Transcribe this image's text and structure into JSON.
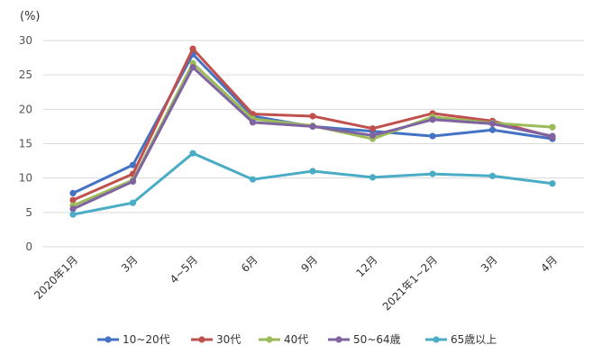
{
  "chart_data": {
    "type": "line",
    "unit_label": "(%)",
    "categories": [
      "2020年1月",
      "3月",
      "4~5月",
      "6月",
      "9月",
      "12月",
      "2021年1~2月",
      "3月",
      "4月"
    ],
    "ylim": [
      0,
      30
    ],
    "yticks": [
      0,
      5,
      10,
      15,
      20,
      25,
      30
    ],
    "grid": true,
    "legend_position": "bottom",
    "series": [
      {
        "name": "10~20代",
        "color": "#4472c4",
        "values": [
          7.8,
          11.9,
          28.0,
          19.0,
          17.5,
          16.8,
          16.1,
          17.0,
          15.7
        ]
      },
      {
        "name": "30代",
        "color": "#c0504d",
        "values": [
          6.8,
          10.6,
          28.8,
          19.3,
          19.0,
          17.2,
          19.4,
          18.3,
          16.0
        ]
      },
      {
        "name": "40代",
        "color": "#9bbb59",
        "values": [
          6.0,
          9.7,
          26.7,
          18.6,
          17.6,
          15.7,
          18.9,
          18.0,
          17.4
        ]
      },
      {
        "name": "50~64歳",
        "color": "#8064a2",
        "values": [
          5.5,
          9.5,
          26.1,
          18.1,
          17.5,
          16.2,
          18.5,
          17.9,
          16.1
        ]
      },
      {
        "name": "65歳以上",
        "color": "#4bacc6",
        "values": [
          4.7,
          6.4,
          13.6,
          9.8,
          11.0,
          10.1,
          10.6,
          10.3,
          9.2
        ]
      }
    ]
  }
}
